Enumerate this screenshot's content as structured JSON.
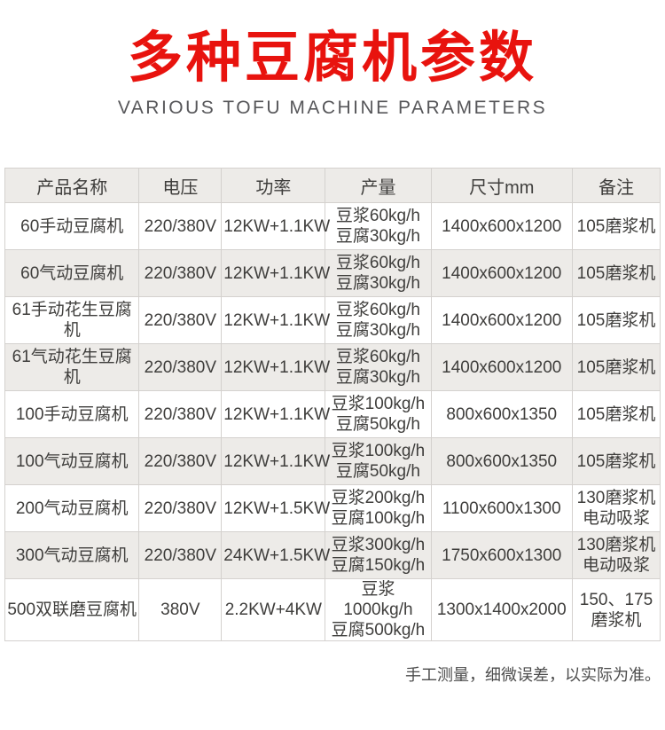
{
  "page": {
    "title": "多种豆腐机参数",
    "subtitle": "VARIOUS TOFU MACHINE PARAMETERS",
    "footnote": "手工测量，细微误差，以实际为准。"
  },
  "colors": {
    "title_red": "#e8130e",
    "subtitle_gray": "#57575a",
    "table_text": "#3f3e3c",
    "row_alt_bg": "#edebe8",
    "border": "#d4d1ce"
  },
  "table": {
    "columns": [
      "产品名称",
      "电压",
      "功率",
      "产量",
      "尺寸mm",
      "备注"
    ],
    "rows": [
      {
        "name": "60手动豆腐机",
        "voltage": "220/380V",
        "power": "12KW+1.1KW",
        "output": [
          "豆浆60kg/h",
          "豆腐30kg/h"
        ],
        "size": "1400x600x1200",
        "note": [
          "105磨浆机"
        ]
      },
      {
        "name": "60气动豆腐机",
        "voltage": "220/380V",
        "power": "12KW+1.1KW",
        "output": [
          "豆浆60kg/h",
          "豆腐30kg/h"
        ],
        "size": "1400x600x1200",
        "note": [
          "105磨浆机"
        ]
      },
      {
        "name": "61手动花生豆腐机",
        "voltage": "220/380V",
        "power": "12KW+1.1KW",
        "output": [
          "豆浆60kg/h",
          "豆腐30kg/h"
        ],
        "size": "1400x600x1200",
        "note": [
          "105磨浆机"
        ]
      },
      {
        "name": "61气动花生豆腐机",
        "voltage": "220/380V",
        "power": "12KW+1.1KW",
        "output": [
          "豆浆60kg/h",
          "豆腐30kg/h"
        ],
        "size": "1400x600x1200",
        "note": [
          "105磨浆机"
        ]
      },
      {
        "name": "100手动豆腐机",
        "voltage": "220/380V",
        "power": "12KW+1.1KW",
        "output": [
          "豆浆100kg/h",
          "豆腐50kg/h"
        ],
        "size": "800x600x1350",
        "note": [
          "105磨浆机"
        ]
      },
      {
        "name": "100气动豆腐机",
        "voltage": "220/380V",
        "power": "12KW+1.1KW",
        "output": [
          "豆浆100kg/h",
          "豆腐50kg/h"
        ],
        "size": "800x600x1350",
        "note": [
          "105磨浆机"
        ]
      },
      {
        "name": "200气动豆腐机",
        "voltage": "220/380V",
        "power": "12KW+1.5KW",
        "output": [
          "豆浆200kg/h",
          "豆腐100kg/h"
        ],
        "size": "1100x600x1300",
        "note": [
          "130磨浆机",
          "电动吸浆"
        ]
      },
      {
        "name": "300气动豆腐机",
        "voltage": "220/380V",
        "power": "24KW+1.5KW",
        "output": [
          "豆浆300kg/h",
          "豆腐150kg/h"
        ],
        "size": "1750x600x1300",
        "note": [
          "130磨浆机",
          "电动吸浆"
        ]
      },
      {
        "name": "500双联磨豆腐机",
        "voltage": "380V",
        "power": "2.2KW+4KW",
        "output": [
          "豆浆1000kg/h",
          "豆腐500kg/h"
        ],
        "size": "1300x1400x2000",
        "note": [
          "150、175",
          "磨浆机"
        ]
      }
    ]
  }
}
